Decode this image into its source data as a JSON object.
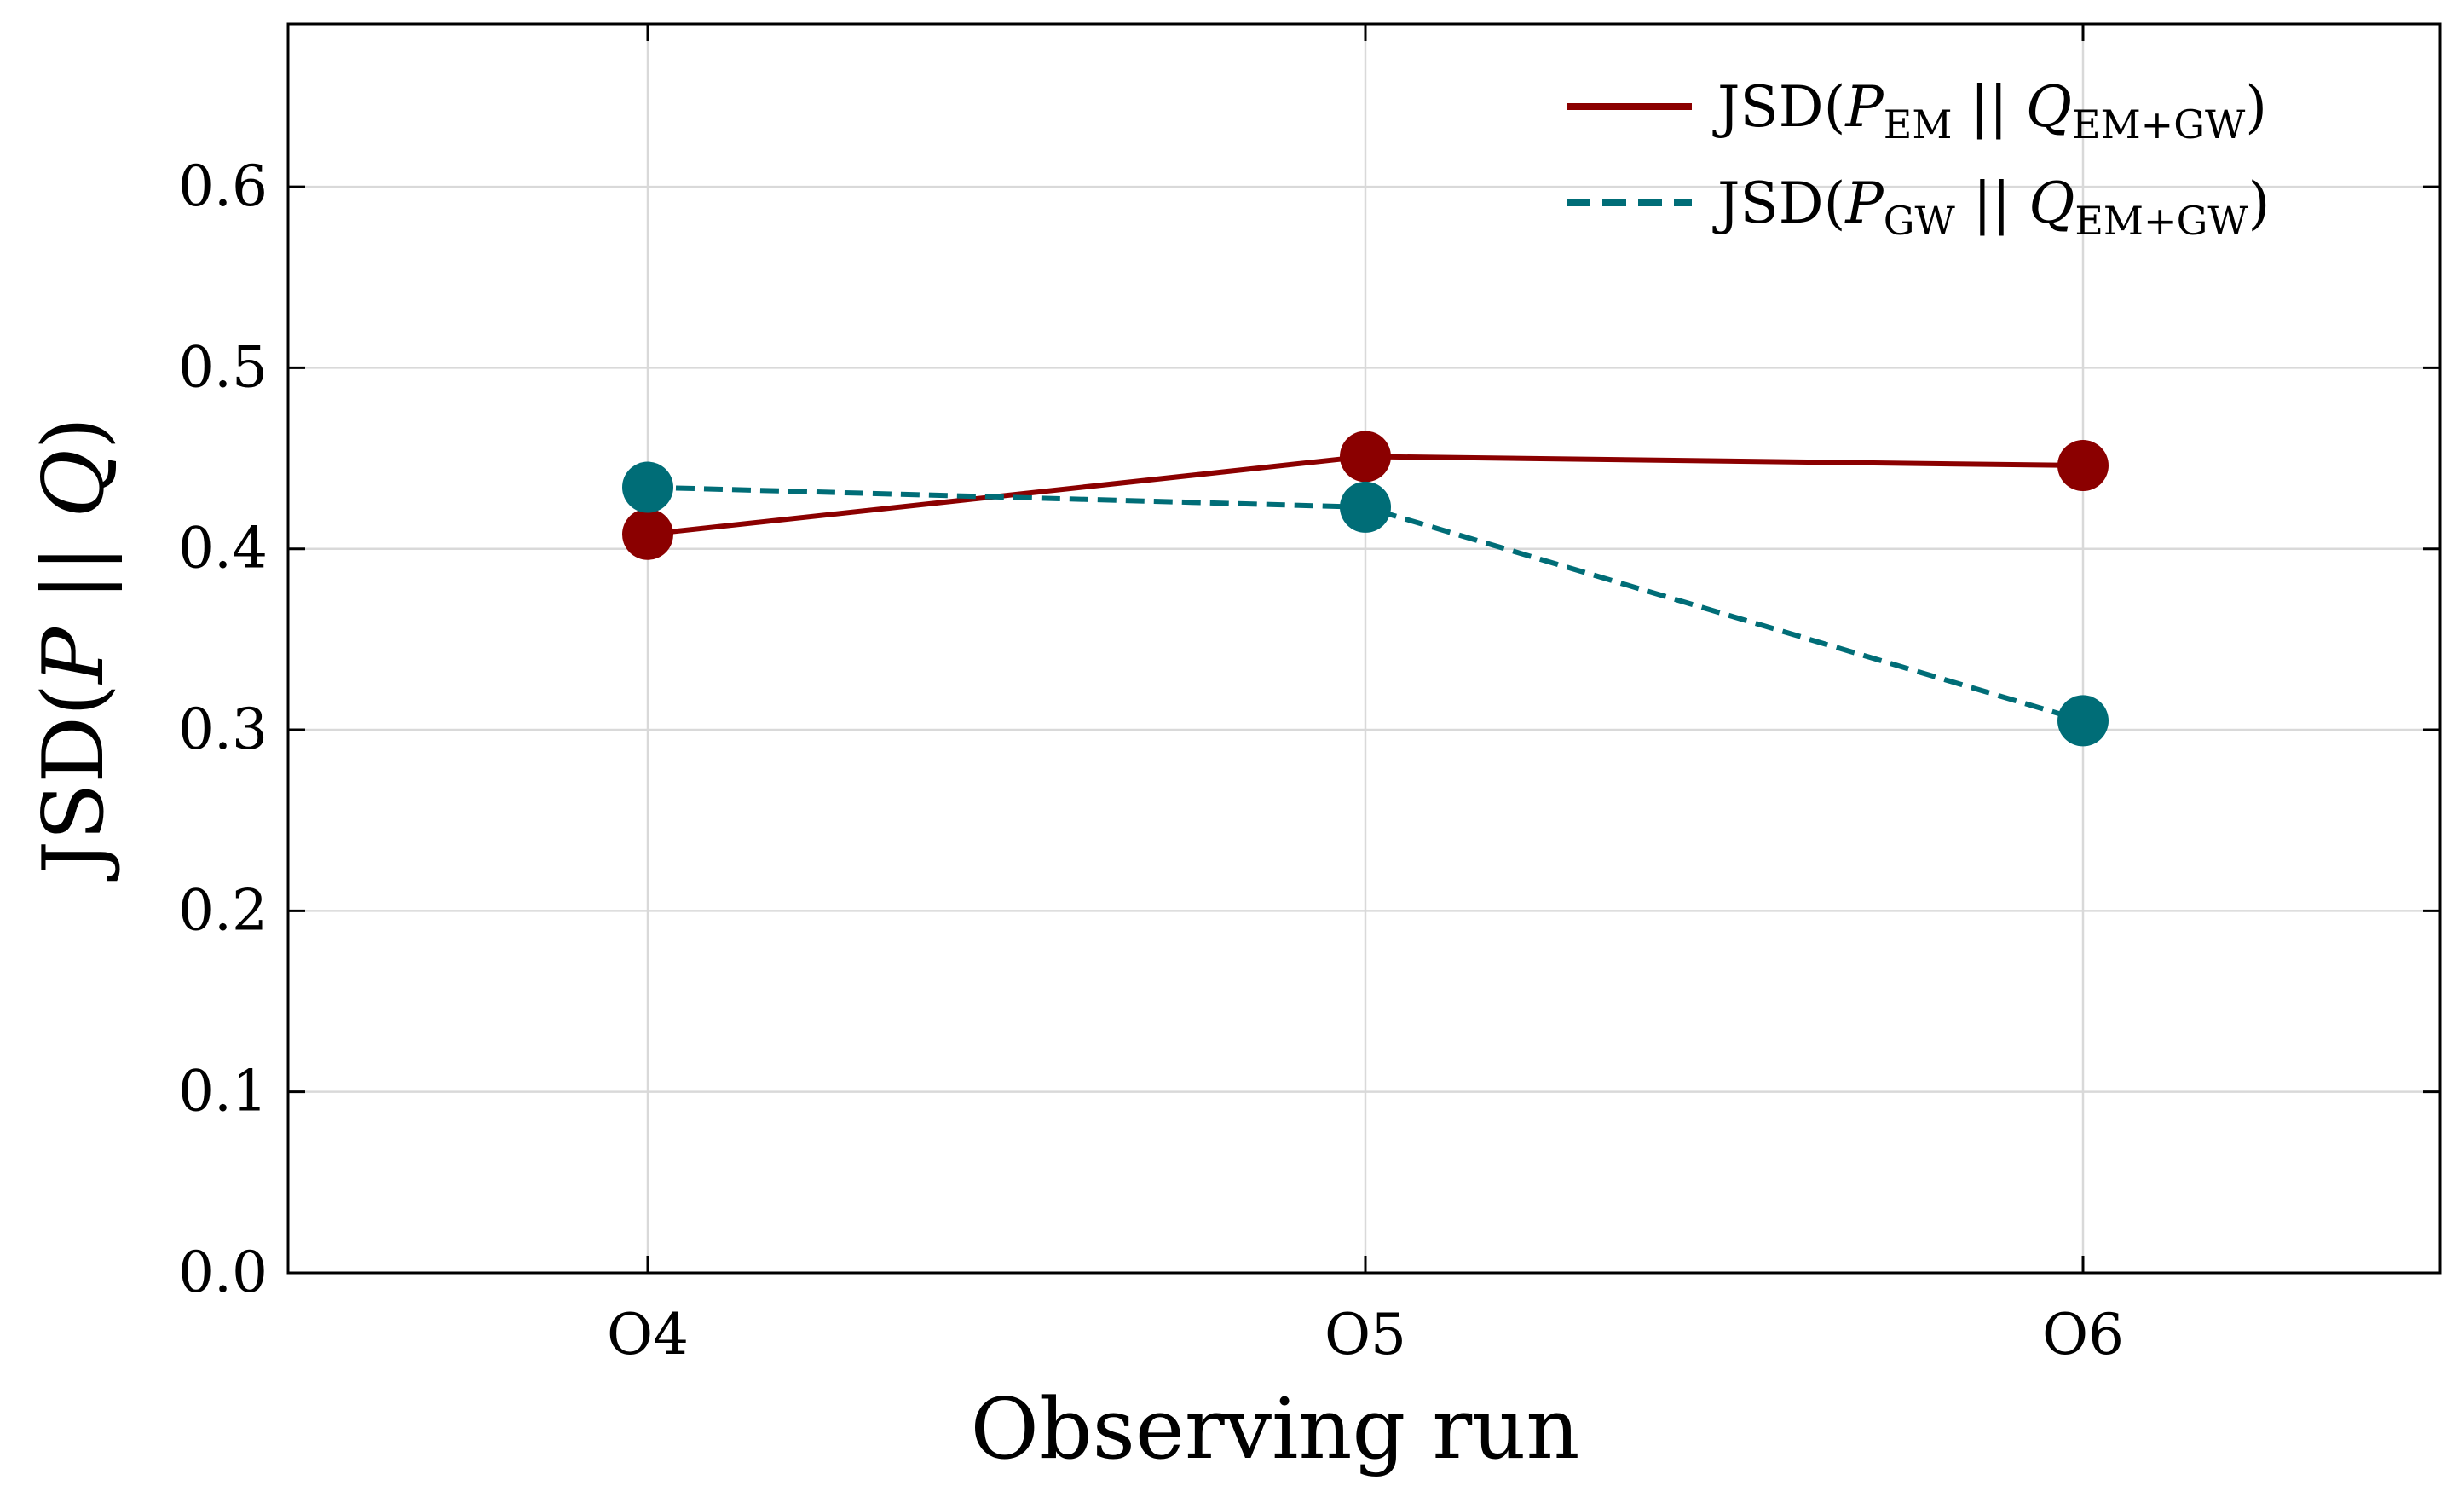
{
  "chart_data": {
    "type": "line",
    "categories": [
      "O4",
      "O5",
      "O6"
    ],
    "series": [
      {
        "name": "JSD(P_EM || Q_EM+GW)",
        "legend_parts": {
          "prefix": "JSD(",
          "p": "P",
          "p_sub": "EM",
          "mid": " || ",
          "q": "Q",
          "q_sub": "EM+GW",
          "suffix": ")"
        },
        "values": [
          0.408,
          0.451,
          0.446
        ],
        "color": "#8b0000",
        "line_style": "solid",
        "marker": "circle"
      },
      {
        "name": "JSD(P_GW || Q_EM+GW)",
        "legend_parts": {
          "prefix": "JSD(",
          "p": "P",
          "p_sub": "GW",
          "mid": " || ",
          "q": "Q",
          "q_sub": "EM+GW",
          "suffix": ")"
        },
        "values": [
          0.434,
          0.423,
          0.305
        ],
        "color": "#006d77",
        "line_style": "dashed",
        "marker": "circle"
      }
    ],
    "xlabel": "Observing run",
    "ylabel": "JSD(P || Q)",
    "ylim": [
      0.0,
      0.69
    ],
    "yticks": [
      "0.0",
      "0.1",
      "0.2",
      "0.3",
      "0.4",
      "0.5",
      "0.6"
    ],
    "grid": true,
    "legend_position": "top-right"
  }
}
